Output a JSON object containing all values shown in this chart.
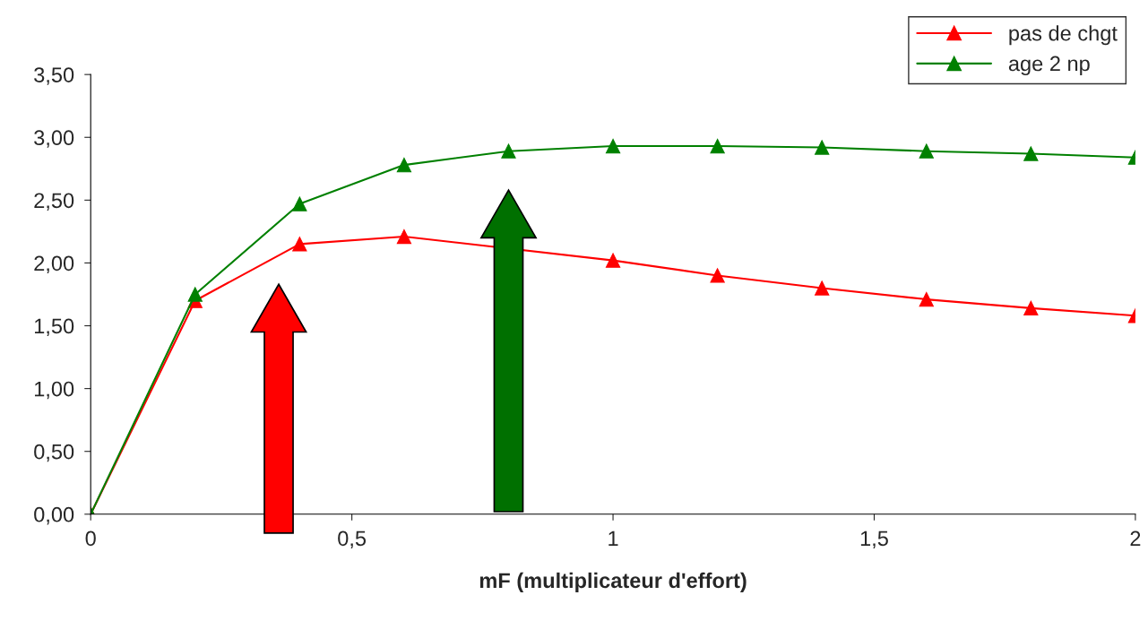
{
  "chart_data": {
    "type": "line",
    "xlabel": "mF (multiplicateur d'effort)",
    "x": [
      0,
      0.2,
      0.4,
      0.6,
      0.8,
      1.0,
      1.2,
      1.4,
      1.6,
      1.8,
      2.0
    ],
    "series": [
      {
        "name": "pas de chgt",
        "color": "#ff0000",
        "values": [
          0,
          1.7,
          2.15,
          2.21,
          null,
          2.02,
          1.9,
          1.8,
          1.71,
          1.64,
          1.58
        ]
      },
      {
        "name": "age 2 np",
        "color": "#008000",
        "values": [
          0,
          1.75,
          2.47,
          2.78,
          2.89,
          2.93,
          2.93,
          2.92,
          2.89,
          2.87,
          2.84
        ]
      }
    ],
    "xlim": [
      0,
      2
    ],
    "xticks": [
      0,
      {
        "value": 0.5,
        "label": "0,5"
      },
      1,
      {
        "value": 1.5,
        "label": "1,5"
      },
      2
    ],
    "ylim": [
      0,
      3.5
    ],
    "yticks": [
      {
        "value": 0,
        "label": "0,00"
      },
      {
        "value": 0.5,
        "label": "0,50"
      },
      {
        "value": 1,
        "label": "1,00"
      },
      {
        "value": 1.5,
        "label": "1,50"
      },
      {
        "value": 2,
        "label": "2,00"
      },
      {
        "value": 2.5,
        "label": "2,50"
      },
      {
        "value": 3,
        "label": "3,00"
      },
      {
        "value": 3.5,
        "label": "3,50"
      }
    ],
    "grid": false,
    "legend": "top right",
    "marker": "triangle",
    "line_style": "solid"
  }
}
